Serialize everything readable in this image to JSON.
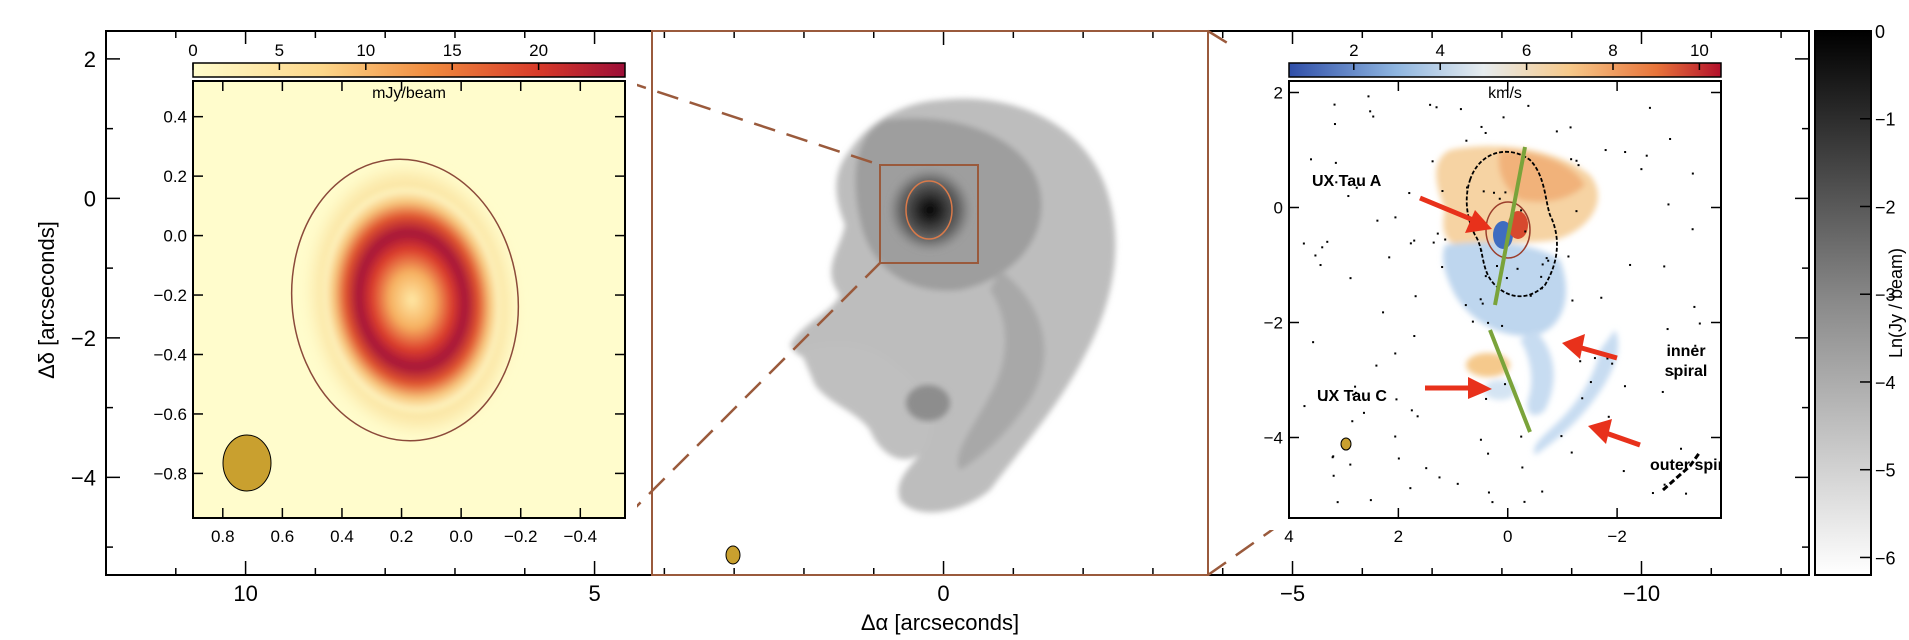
{
  "chart_data": {
    "type": "heatmap",
    "outer_axes": {
      "xlabel": "Δα  [arcseconds]",
      "ylabel": "Δδ  [arcseconds]",
      "xlim": [
        12,
        -12.4
      ],
      "ylim": [
        -5.4,
        2.4
      ],
      "xticks": [
        10,
        5,
        0,
        -5,
        -10
      ],
      "yticks": [
        2,
        0,
        -2,
        -4
      ]
    },
    "colorbar_main": {
      "label": "Ln(Jy / beam)",
      "range": [
        -6.2,
        0
      ],
      "ticks": [
        "0",
        "−1",
        "−2",
        "−3",
        "−4",
        "−5",
        "−6"
      ],
      "tick_values": [
        0,
        -1,
        -2,
        -3,
        -4,
        -5,
        -6
      ],
      "colors": [
        "#ffffff",
        "#000000"
      ]
    },
    "left_panel": {
      "colorbar_label": "mJy/beam",
      "colorbar_ticks": [
        "0",
        "5",
        "10",
        "15",
        "20"
      ],
      "colorbar_tick_values": [
        0,
        5,
        10,
        15,
        20
      ],
      "colorbar_range": [
        0,
        25
      ],
      "xticks": [
        "0.8",
        "0.6",
        "0.4",
        "0.2",
        "0.0",
        "−0.2",
        "−0.4"
      ],
      "xtick_values": [
        0.8,
        0.6,
        0.4,
        0.2,
        0.0,
        -0.2,
        -0.4
      ],
      "yticks": [
        "0.4",
        "0.2",
        "0.0",
        "−0.2",
        "−0.4",
        "−0.6",
        "−0.8"
      ],
      "ytick_values": [
        0.4,
        0.2,
        0.0,
        -0.2,
        -0.4,
        -0.6,
        -0.8
      ],
      "xlim": [
        0.9,
        -0.55
      ],
      "ylim": [
        -0.95,
        0.52
      ],
      "ring_center": [
        0.14,
        -0.24
      ],
      "ring_peak_mJy": 23,
      "colors": [
        "#fffccc",
        "#fdd78a",
        "#f08a3e",
        "#d83a2a",
        "#9c0e38"
      ]
    },
    "right_panel": {
      "colorbar_label": "km/s",
      "colorbar_ticks": [
        "2",
        "4",
        "6",
        "8",
        "10"
      ],
      "colorbar_tick_values": [
        2,
        4,
        6,
        8,
        10
      ],
      "colorbar_range": [
        0.5,
        10.5
      ],
      "xticks": [
        "4",
        "2",
        "0",
        "−2"
      ],
      "xtick_values": [
        4,
        2,
        0,
        -2
      ],
      "yticks": [
        "2",
        "0",
        "−2",
        "−4"
      ],
      "ytick_values": [
        2,
        0,
        -2,
        -4
      ],
      "xlim": [
        4.0,
        -3.9
      ],
      "ylim": [
        -5.4,
        2.2
      ],
      "colors": [
        "#2f4ea8",
        "#8fb6e0",
        "#e6ecef",
        "#f7c98a",
        "#e8743a",
        "#b3102b"
      ],
      "annotations": [
        "UX Tau A",
        "UX Tau C",
        "inner spiral",
        "outer spiral"
      ]
    }
  },
  "colors": {
    "zoom_lines": "#9a5a3c",
    "beam": "#c9a02f",
    "arrow": "#e8311b",
    "axis_line": "#7aa33a"
  }
}
